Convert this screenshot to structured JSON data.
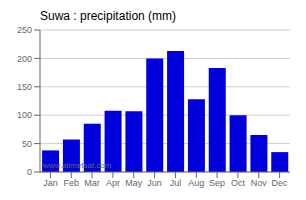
{
  "chart_data": {
    "type": "bar",
    "title": "Suwa : precipitation (mm)",
    "categories": [
      "Jan",
      "Feb",
      "Mar",
      "Apr",
      "May",
      "Jun",
      "Jul",
      "Aug",
      "Sep",
      "Oct",
      "Nov",
      "Dec"
    ],
    "values": [
      38,
      57,
      85,
      108,
      107,
      200,
      213,
      128,
      183,
      100,
      65,
      35
    ],
    "color": "#0000dd",
    "ylim": [
      0,
      250
    ],
    "yticks": [
      0,
      50,
      100,
      150,
      200,
      250
    ],
    "grid": true,
    "annotations": [
      "www.allmetsat.com"
    ]
  }
}
